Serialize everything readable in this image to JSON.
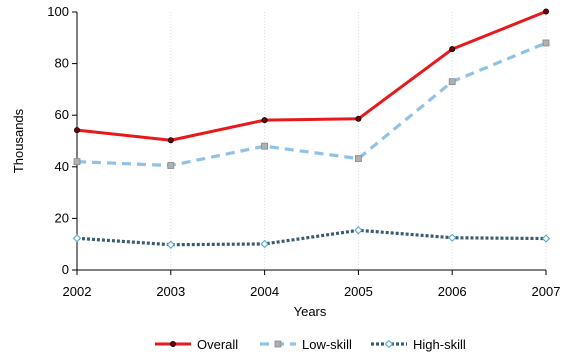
{
  "chart_data": {
    "type": "line",
    "x": [
      2002,
      2003,
      2004,
      2005,
      2006,
      2007
    ],
    "xlabel": "Years",
    "ylabel": "Thousands",
    "ylim": [
      0,
      100
    ],
    "yticks": [
      0,
      20,
      40,
      60,
      80,
      100
    ],
    "grid": "vertical",
    "legend": "bottom",
    "series": [
      {
        "name": "Overall",
        "values": [
          54.2,
          50.3,
          58.1,
          58.6,
          85.6,
          100.2
        ],
        "color": "#e41a1c",
        "style": "solid",
        "marker": "circle"
      },
      {
        "name": "Low-skill",
        "values": [
          42.0,
          40.5,
          48.0,
          43.2,
          73.0,
          88.0
        ],
        "color": "#8fc3e6",
        "style": "dashed",
        "marker": "square"
      },
      {
        "name": "High-skill",
        "values": [
          12.3,
          9.8,
          10.1,
          15.4,
          12.5,
          12.2
        ],
        "color": "#3a5c70",
        "style": "dotted",
        "marker": "diamond"
      }
    ]
  }
}
